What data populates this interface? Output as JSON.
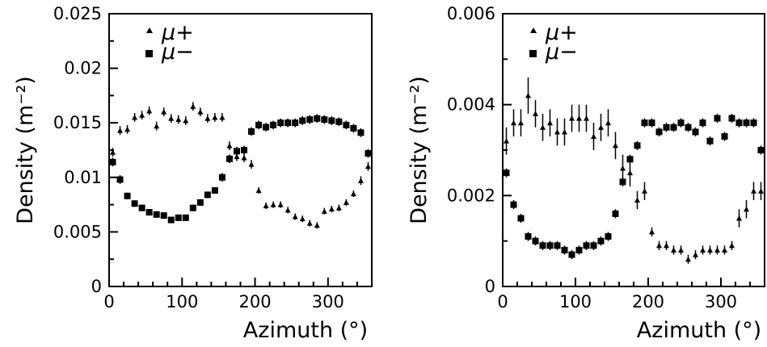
{
  "chart_data": [
    {
      "type": "scatter",
      "xlabel": "Azimuth (°)",
      "ylabel": "Density (m⁻²)",
      "xlim": [
        0,
        360
      ],
      "ylim": [
        0,
        0.025
      ],
      "x_ticks": [
        0,
        100,
        200,
        300
      ],
      "x_tick_labels": [
        "0",
        "100",
        "200",
        "300"
      ],
      "y_ticks": [
        0,
        0.005,
        0.01,
        0.015,
        0.02,
        0.025
      ],
      "y_tick_labels": [
        "0",
        "0.005",
        "0.01",
        "0.015",
        "0.02",
        "0.025"
      ],
      "grid": false,
      "legend_position": "top-left",
      "x": [
        5,
        15,
        25,
        35,
        45,
        55,
        65,
        75,
        85,
        95,
        105,
        115,
        125,
        135,
        145,
        155,
        165,
        175,
        185,
        195,
        205,
        215,
        225,
        235,
        245,
        255,
        265,
        275,
        285,
        295,
        305,
        315,
        325,
        335,
        345,
        355
      ],
      "series": [
        {
          "name": "μ+",
          "marker": "triangle",
          "values": [
            0.0123,
            0.0143,
            0.0144,
            0.0155,
            0.0157,
            0.0161,
            0.0147,
            0.016,
            0.0154,
            0.0153,
            0.0152,
            0.0165,
            0.016,
            0.0154,
            0.0155,
            0.0155,
            0.0129,
            0.0119,
            0.0118,
            0.0112,
            0.0088,
            0.0074,
            0.0075,
            0.0075,
            0.007,
            0.0064,
            0.0062,
            0.0058,
            0.0056,
            0.0069,
            0.0071,
            0.0072,
            0.0077,
            0.0085,
            0.0097,
            0.011
          ],
          "errors": [
            0.0004,
            0.0004,
            0.0004,
            0.0004,
            0.0004,
            0.0004,
            0.0004,
            0.0004,
            0.0004,
            0.0004,
            0.0004,
            0.0004,
            0.0004,
            0.0004,
            0.0004,
            0.0004,
            0.0004,
            0.0004,
            0.0004,
            0.0004,
            0.0003,
            0.0003,
            0.0003,
            0.0003,
            0.0003,
            0.0003,
            0.0003,
            0.0003,
            0.0003,
            0.0003,
            0.0003,
            0.0003,
            0.0003,
            0.0003,
            0.0004,
            0.0004
          ]
        },
        {
          "name": "μ−",
          "marker": "square",
          "values": [
            0.0114,
            0.0098,
            0.0083,
            0.0076,
            0.0072,
            0.0068,
            0.0066,
            0.0065,
            0.0061,
            0.0063,
            0.0063,
            0.0072,
            0.0077,
            0.0084,
            0.0088,
            0.01,
            0.0117,
            0.0124,
            0.0125,
            0.0142,
            0.0148,
            0.0146,
            0.0148,
            0.015,
            0.015,
            0.015,
            0.0152,
            0.0153,
            0.0154,
            0.0153,
            0.0152,
            0.0151,
            0.0148,
            0.0145,
            0.0141,
            0.0122
          ],
          "errors": [
            0.0004,
            0.0004,
            0.0003,
            0.0003,
            0.0003,
            0.0003,
            0.0003,
            0.0003,
            0.0003,
            0.0003,
            0.0003,
            0.0003,
            0.0003,
            0.0003,
            0.0003,
            0.0004,
            0.0004,
            0.0004,
            0.0004,
            0.0004,
            0.0004,
            0.0004,
            0.0004,
            0.0004,
            0.0004,
            0.0004,
            0.0004,
            0.0004,
            0.0004,
            0.0004,
            0.0004,
            0.0004,
            0.0004,
            0.0004,
            0.0004,
            0.0004
          ]
        }
      ]
    },
    {
      "type": "scatter",
      "xlabel": "Azimuth (°)",
      "ylabel": "Density (m⁻²)",
      "xlim": [
        0,
        360
      ],
      "ylim": [
        0,
        0.006
      ],
      "x_ticks": [
        0,
        100,
        200,
        300
      ],
      "x_tick_labels": [
        "0",
        "100",
        "200",
        "300"
      ],
      "y_ticks": [
        0,
        0.002,
        0.004,
        0.006
      ],
      "y_tick_labels": [
        "0",
        "0.002",
        "0.004",
        "0.006"
      ],
      "grid": false,
      "legend_position": "top-left",
      "x": [
        5,
        15,
        25,
        35,
        45,
        55,
        65,
        75,
        85,
        95,
        105,
        115,
        125,
        135,
        145,
        155,
        165,
        175,
        185,
        195,
        205,
        215,
        225,
        235,
        245,
        255,
        265,
        275,
        285,
        295,
        305,
        315,
        325,
        335,
        345,
        355
      ],
      "series": [
        {
          "name": "μ+",
          "marker": "triangle",
          "values": [
            0.0032,
            0.0036,
            0.0036,
            0.0042,
            0.0038,
            0.0035,
            0.0036,
            0.0034,
            0.0034,
            0.0037,
            0.0037,
            0.0037,
            0.0033,
            0.0035,
            0.0036,
            0.0031,
            0.0026,
            0.0025,
            0.0019,
            0.0021,
            0.0012,
            0.0009,
            0.0009,
            0.0008,
            0.0008,
            0.0006,
            0.0007,
            0.0008,
            0.0008,
            0.0008,
            0.0008,
            0.0009,
            0.0015,
            0.0017,
            0.0021,
            0.0021
          ],
          "errors": [
            0.0003,
            0.0003,
            0.0003,
            0.0004,
            0.0003,
            0.0003,
            0.0003,
            0.0003,
            0.0003,
            0.0003,
            0.0003,
            0.0003,
            0.0003,
            0.0003,
            0.0003,
            0.0003,
            0.0003,
            0.0003,
            0.0002,
            0.0002,
            0.0001,
            0.0001,
            0.0001,
            0.0001,
            0.0001,
            0.0001,
            0.0001,
            0.0001,
            0.0001,
            0.0001,
            0.0001,
            0.0001,
            0.0002,
            0.0002,
            0.0002,
            0.0002
          ]
        },
        {
          "name": "μ−",
          "marker": "square",
          "values": [
            0.0025,
            0.0018,
            0.0015,
            0.0011,
            0.001,
            0.0009,
            0.0009,
            0.0009,
            0.0008,
            0.0007,
            0.0008,
            0.0009,
            0.0009,
            0.001,
            0.0011,
            0.0016,
            0.0023,
            0.0028,
            0.0031,
            0.0036,
            0.0036,
            0.0034,
            0.0035,
            0.0035,
            0.0036,
            0.0035,
            0.0034,
            0.0036,
            0.0032,
            0.0037,
            0.0033,
            0.0037,
            0.0036,
            0.0036,
            0.0036,
            0.003
          ],
          "errors": [
            0.0001,
            0.0001,
            0.0001,
            0.0001,
            0.0001,
            0.0001,
            0.0001,
            0.0001,
            0.0001,
            0.0001,
            0.0001,
            0.0001,
            0.0001,
            0.0001,
            0.0001,
            0.0001,
            0.0001,
            0.0001,
            0.0001,
            0.0001,
            0.0001,
            0.0001,
            0.0001,
            0.0001,
            0.0001,
            0.0001,
            0.0001,
            0.0001,
            0.0001,
            0.0001,
            0.0001,
            0.0001,
            0.0001,
            0.0001,
            0.0001,
            0.0001
          ]
        }
      ]
    }
  ]
}
